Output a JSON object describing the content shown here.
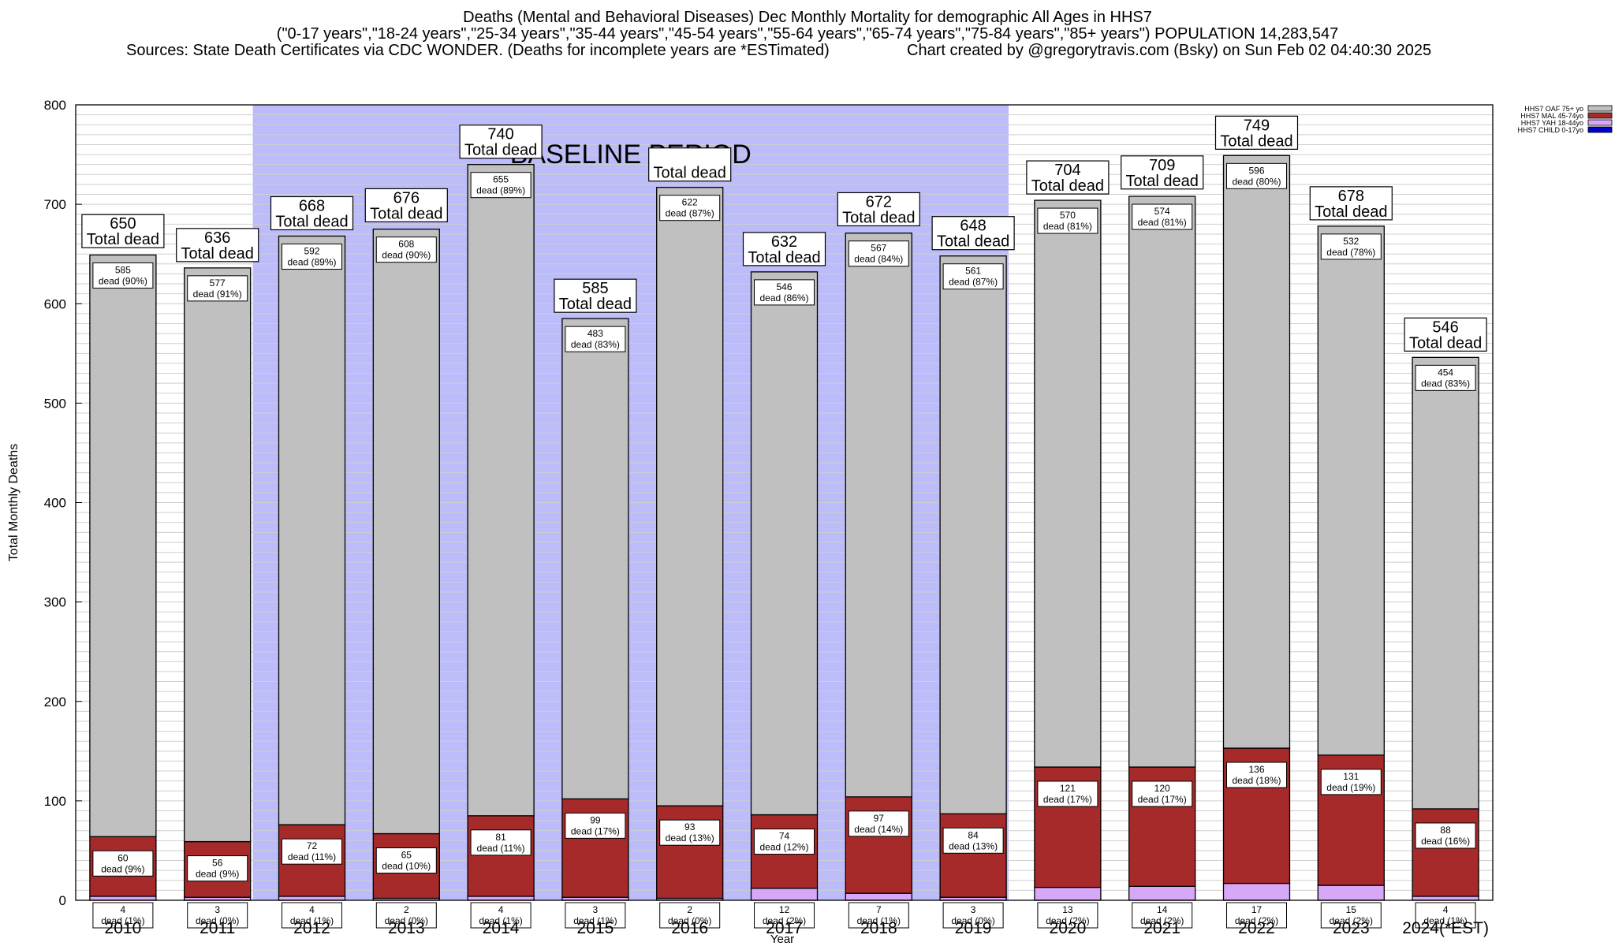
{
  "header": {
    "title": "Deaths (Mental and Behavioral Diseases) Dec Monthly Mortality for demographic All Ages in HHS7",
    "subtitle": "(\"0-17 years\",\"18-24 years\",\"25-34 years\",\"35-44 years\",\"45-54 years\",\"55-64 years\",\"65-74 years\",\"75-84 years\",\"85+ years\") POPULATION 14,283,547",
    "sources": "Sources: State Death Certificates via CDC WONDER. (Deaths for incomplete years are *ESTimated)",
    "credit": "Chart created by @gregorytravis.com (Bsky) on Sun Feb 02 04:40:30 2025"
  },
  "chart_data": {
    "type": "bar",
    "stacked": true,
    "xlabel": "Year",
    "ylabel": "Total Monthly Deaths",
    "ylim": [
      0,
      800
    ],
    "yticks": [
      0,
      100,
      200,
      300,
      400,
      500,
      600,
      700,
      800
    ],
    "grid": true,
    "legend_position": "top-right",
    "baseline_label": "BASELINE PERIOD",
    "baseline_range": [
      "2012",
      "2019"
    ],
    "total_suffix": "Total dead",
    "categories": [
      "2010",
      "2011",
      "2012",
      "2013",
      "2014",
      "2015",
      "2016",
      "2017",
      "2018",
      "2019",
      "2020",
      "2021",
      "2022",
      "2023",
      "2024(*EST)"
    ],
    "totals": [
      650,
      636,
      668,
      676,
      740,
      585,
      717,
      632,
      672,
      648,
      704,
      709,
      749,
      678,
      546
    ],
    "total_labels": [
      "650",
      "636",
      "668",
      "676",
      "740",
      "585",
      "",
      "632",
      "672",
      "648",
      "704",
      "709",
      "749",
      "678",
      "546"
    ],
    "series": [
      {
        "name": "HHS7 CHILD 0-17yo",
        "color": "#0000cc",
        "values": [
          0,
          0,
          0,
          0,
          0,
          0,
          0,
          0,
          0,
          0,
          0,
          0,
          0,
          0,
          0
        ],
        "labels": []
      },
      {
        "name": "HHS7 YAH 18-44yo",
        "color": "#d8a8f8",
        "values": [
          4,
          3,
          4,
          2,
          4,
          3,
          2,
          12,
          7,
          3,
          13,
          14,
          17,
          15,
          4
        ],
        "labels": [
          "dead (1%)",
          "dead (0%)",
          "dead (1%)",
          "dead (0%)",
          "dead (1%)",
          "dead (1%)",
          "dead (0%)",
          "dead (2%)",
          "dead (1%)",
          "dead (0%)",
          "dead (2%)",
          "dead (2%)",
          "dead (2%)",
          "dead (2%)",
          "dead (1%)"
        ]
      },
      {
        "name": "HHS7 MAL 45-74yo",
        "color": "#a62a2a",
        "values": [
          60,
          56,
          72,
          65,
          81,
          99,
          93,
          74,
          97,
          84,
          121,
          120,
          136,
          131,
          88
        ],
        "labels": [
          "dead (9%)",
          "dead (9%)",
          "dead (11%)",
          "dead (10%)",
          "dead (11%)",
          "dead (17%)",
          "dead (13%)",
          "dead (12%)",
          "dead (14%)",
          "dead (13%)",
          "dead (17%)",
          "dead (17%)",
          "dead (18%)",
          "dead (19%)",
          "dead (16%)"
        ]
      },
      {
        "name": "HHS7 OAF 75+ yo",
        "color": "#c0c0c0",
        "values": [
          585,
          577,
          592,
          608,
          655,
          483,
          622,
          546,
          567,
          561,
          570,
          574,
          596,
          532,
          454
        ],
        "labels": [
          "dead (90%)",
          "dead (91%)",
          "dead (89%)",
          "dead (90%)",
          "dead (89%)",
          "dead (83%)",
          "dead (87%)",
          "dead (86%)",
          "dead (84%)",
          "dead (87%)",
          "dead (81%)",
          "dead (81%)",
          "dead (80%)",
          "dead (78%)",
          "dead (83%)"
        ]
      }
    ]
  }
}
